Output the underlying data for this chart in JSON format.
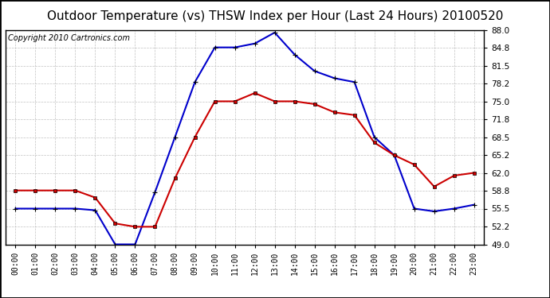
{
  "title": "Outdoor Temperature (vs) THSW Index per Hour (Last 24 Hours) 20100520",
  "copyright": "Copyright 2010 Cartronics.com",
  "hours": [
    0,
    1,
    2,
    3,
    4,
    5,
    6,
    7,
    8,
    9,
    10,
    11,
    12,
    13,
    14,
    15,
    16,
    17,
    18,
    19,
    20,
    21,
    22,
    23
  ],
  "temp": [
    58.8,
    58.8,
    58.8,
    58.8,
    57.5,
    52.8,
    52.2,
    52.2,
    61.0,
    68.5,
    75.0,
    75.0,
    76.5,
    75.0,
    75.0,
    74.5,
    73.0,
    72.5,
    67.5,
    65.2,
    63.5,
    59.5,
    61.5,
    62.0
  ],
  "thsw": [
    55.5,
    55.5,
    55.5,
    55.5,
    55.2,
    49.0,
    49.0,
    58.5,
    68.5,
    78.5,
    84.8,
    84.8,
    85.5,
    87.5,
    83.5,
    80.5,
    79.2,
    78.5,
    68.5,
    65.2,
    55.5,
    55.0,
    55.5,
    56.2
  ],
  "temp_color": "#cc0000",
  "thsw_color": "#0000cc",
  "bg_color": "#ffffff",
  "grid_color": "#bbbbbb",
  "ylim": [
    49.0,
    88.0
  ],
  "yticks": [
    49.0,
    52.2,
    55.5,
    58.8,
    62.0,
    65.2,
    68.5,
    71.8,
    75.0,
    78.2,
    81.5,
    84.8,
    88.0
  ],
  "title_fontsize": 11,
  "copyright_fontsize": 7
}
